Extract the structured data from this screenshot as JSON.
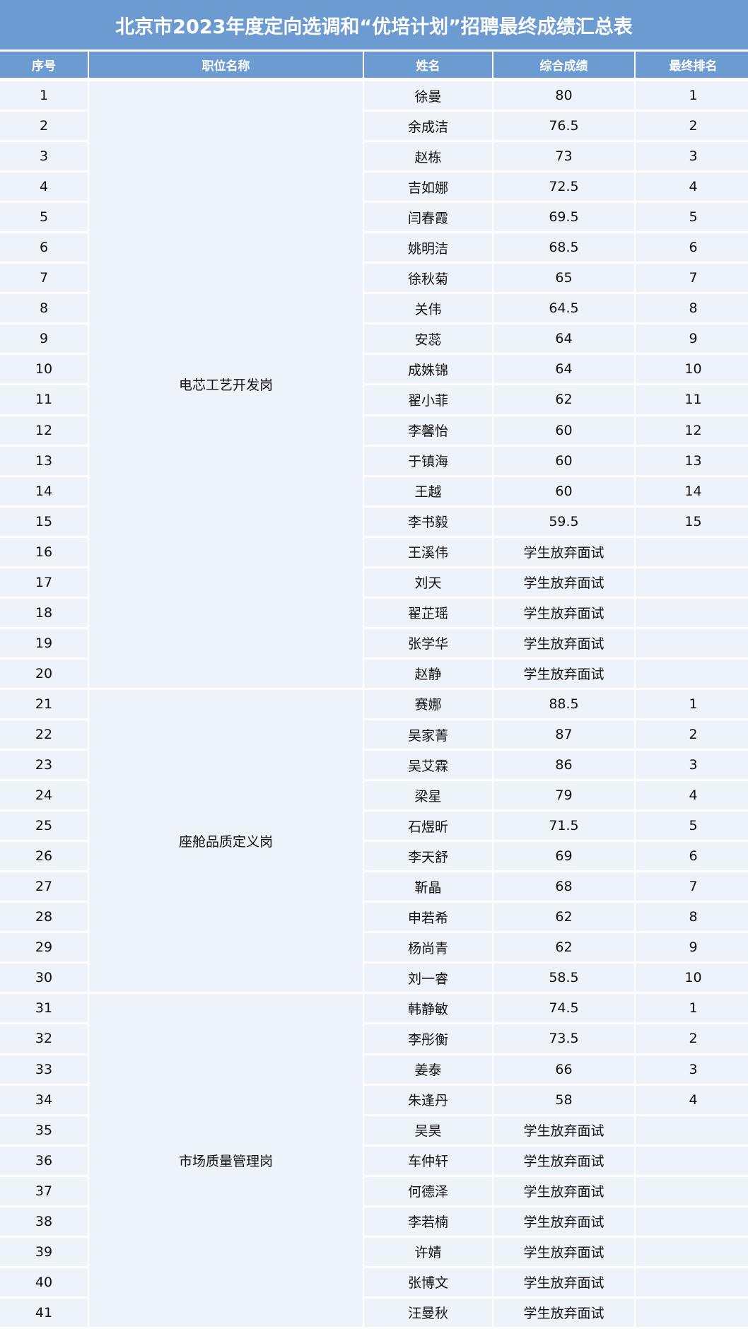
{
  "title": "北京市2023年度定向选调和“优培计划”招聘最终成绩汇总表",
  "headers": [
    "序号",
    "职位名称",
    "姓名",
    "综合成绩",
    "最终排名"
  ],
  "groups": [
    {
      "position": "电芯工艺开发岗",
      "rows": [
        [
          "1",
          "徐曼",
          "80",
          "1"
        ],
        [
          "2",
          "余成洁",
          "76.5",
          "2"
        ],
        [
          "3",
          "赵栋",
          "73",
          "3"
        ],
        [
          "4",
          "吉如娜",
          "72.5",
          "4"
        ],
        [
          "5",
          "闫春霞",
          "69.5",
          "5"
        ],
        [
          "6",
          "姚明洁",
          "68.5",
          "6"
        ],
        [
          "7",
          "徐秋菊",
          "65",
          "7"
        ],
        [
          "8",
          "关伟",
          "64.5",
          "8"
        ],
        [
          "9",
          "安蕊",
          "64",
          "9"
        ],
        [
          "10",
          "成姝锦",
          "64",
          "10"
        ],
        [
          "11",
          "翟小菲",
          "62",
          "11"
        ],
        [
          "12",
          "李馨怡",
          "60",
          "12"
        ],
        [
          "13",
          "于镇海",
          "60",
          "13"
        ],
        [
          "14",
          "王越",
          "60",
          "14"
        ],
        [
          "15",
          "李书毅",
          "59.5",
          "15"
        ],
        [
          "16",
          "王溪伟",
          "学生放弃面试",
          ""
        ],
        [
          "17",
          "刘天",
          "学生放弃面试",
          ""
        ],
        [
          "18",
          "翟芷瑶",
          "学生放弃面试",
          ""
        ],
        [
          "19",
          "张学华",
          "学生放弃面试",
          ""
        ],
        [
          "20",
          "赵静",
          "学生放弃面试",
          ""
        ]
      ]
    },
    {
      "position": "座舱品质定义岗",
      "rows": [
        [
          "21",
          "赛娜",
          "88.5",
          "1"
        ],
        [
          "22",
          "吴家菁",
          "87",
          "2"
        ],
        [
          "23",
          "吴艾霖",
          "86",
          "3"
        ],
        [
          "24",
          "梁星",
          "79",
          "4"
        ],
        [
          "25",
          "石煜昕",
          "71.5",
          "5"
        ],
        [
          "26",
          "李天舒",
          "69",
          "6"
        ],
        [
          "27",
          "靳晶",
          "68",
          "7"
        ],
        [
          "28",
          "申若希",
          "62",
          "8"
        ],
        [
          "29",
          "杨尚青",
          "62",
          "9"
        ],
        [
          "30",
          "刘一睿",
          "58.5",
          "10"
        ]
      ]
    },
    {
      "position": "市场质量管理岗",
      "rows": [
        [
          "31",
          "韩静敏",
          "74.5",
          "1"
        ],
        [
          "32",
          "李彤衡",
          "73.5",
          "2"
        ],
        [
          "33",
          "姜泰",
          "66",
          "3"
        ],
        [
          "34",
          "朱逢丹",
          "58",
          "4"
        ],
        [
          "35",
          "吴昊",
          "学生放弃面试",
          ""
        ],
        [
          "36",
          "车仲轩",
          "学生放弃面试",
          ""
        ],
        [
          "37",
          "何德泽",
          "学生放弃面试",
          ""
        ],
        [
          "38",
          "李若楠",
          "学生放弃面试",
          ""
        ],
        [
          "39",
          "许婧",
          "学生放弃面试",
          ""
        ],
        [
          "40",
          "张博文",
          "学生放弃面试",
          ""
        ],
        [
          "41",
          "汪曼秋",
          "学生放弃面试",
          ""
        ]
      ]
    }
  ]
}
